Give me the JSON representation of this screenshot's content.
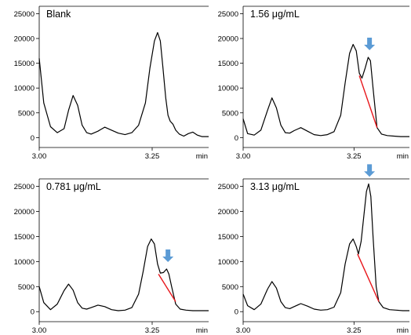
{
  "chart_data": [
    {
      "type": "line",
      "title": "Blank",
      "xlabel": "min",
      "xlim": [
        3.0,
        3.375
      ],
      "ylim": [
        -2000,
        26500
      ],
      "xticks": [
        "3.00",
        "3.25"
      ],
      "yticks": [
        "0",
        "5000",
        "10000",
        "15000",
        "20000",
        "25000"
      ],
      "series": [
        {
          "x": [
            3.0,
            3.01,
            3.025,
            3.04,
            3.055,
            3.065,
            3.075,
            3.085,
            3.095,
            3.105,
            3.115,
            3.13,
            3.145,
            3.16,
            3.175,
            3.19,
            3.205,
            3.22,
            3.235,
            3.245,
            3.255,
            3.262,
            3.268,
            3.274,
            3.28,
            3.285,
            3.29,
            3.296,
            3.302,
            3.31,
            3.32,
            3.33,
            3.34,
            3.35,
            3.36,
            3.375
          ],
          "y": [
            16000,
            7000,
            2200,
            1000,
            1800,
            5500,
            8500,
            6500,
            2500,
            1000,
            700,
            1300,
            2100,
            1500,
            900,
            600,
            1000,
            2500,
            7000,
            14000,
            19500,
            21200,
            19500,
            14000,
            8000,
            4500,
            3300,
            2700,
            1500,
            700,
            300,
            800,
            1100,
            500,
            200,
            200
          ]
        }
      ]
    },
    {
      "type": "line",
      "title": "1.56  μg/mL",
      "xlabel": "min",
      "xlim": [
        3.0,
        3.375
      ],
      "ylim": [
        -2000,
        26500
      ],
      "xticks": [
        "3.00",
        "3.25"
      ],
      "yticks": [
        "0",
        "5000",
        "10000",
        "15000",
        "20000",
        "25000"
      ],
      "baseline": {
        "x": [
          3.262,
          3.302
        ],
        "y": [
          12500,
          2000
        ]
      },
      "marker": {
        "x": 3.285,
        "label": "analyte peak"
      },
      "series": [
        {
          "x": [
            3.0,
            3.01,
            3.025,
            3.04,
            3.055,
            3.065,
            3.075,
            3.085,
            3.095,
            3.105,
            3.115,
            3.13,
            3.145,
            3.16,
            3.175,
            3.19,
            3.205,
            3.22,
            3.23,
            3.24,
            3.248,
            3.255,
            3.262,
            3.268,
            3.275,
            3.282,
            3.287,
            3.293,
            3.302,
            3.312,
            3.325,
            3.34,
            3.355,
            3.375
          ],
          "y": [
            3800,
            800,
            500,
            1500,
            5500,
            8000,
            6000,
            2500,
            1000,
            900,
            1400,
            2000,
            1300,
            600,
            400,
            600,
            1200,
            4500,
            11000,
            17000,
            18800,
            17500,
            13000,
            12000,
            14000,
            16200,
            15500,
            10000,
            2000,
            700,
            400,
            300,
            200,
            200
          ]
        }
      ]
    },
    {
      "type": "line",
      "title": "0.781  μg/mL",
      "xlabel": "min",
      "xlim": [
        3.0,
        3.375
      ],
      "ylim": [
        -2000,
        26500
      ],
      "xticks": [
        "3.00",
        "3.25"
      ],
      "yticks": [
        "0",
        "5000",
        "10000",
        "15000",
        "20000",
        "25000"
      ],
      "baseline": {
        "x": [
          3.264,
          3.302
        ],
        "y": [
          7500,
          2000
        ]
      },
      "marker": {
        "x": 3.285,
        "label": "analyte peak"
      },
      "series": [
        {
          "x": [
            3.0,
            3.01,
            3.025,
            3.04,
            3.055,
            3.065,
            3.075,
            3.085,
            3.095,
            3.105,
            3.115,
            3.13,
            3.145,
            3.16,
            3.175,
            3.19,
            3.205,
            3.22,
            3.23,
            3.24,
            3.248,
            3.255,
            3.262,
            3.268,
            3.275,
            3.282,
            3.287,
            3.293,
            3.302,
            3.312,
            3.325,
            3.34,
            3.355,
            3.375
          ],
          "y": [
            5000,
            1800,
            400,
            1500,
            4200,
            5500,
            4300,
            1800,
            700,
            500,
            800,
            1300,
            1000,
            400,
            200,
            300,
            800,
            3500,
            8000,
            13000,
            14500,
            13500,
            9500,
            7700,
            7800,
            8500,
            7500,
            5000,
            1500,
            500,
            300,
            200,
            200,
            200
          ]
        }
      ]
    },
    {
      "type": "line",
      "title": "3.13  μg/mL",
      "xlabel": "min",
      "xlim": [
        3.0,
        3.375
      ],
      "ylim": [
        -2000,
        26500
      ],
      "xticks": [
        "3.00",
        "3.25"
      ],
      "yticks": [
        "0",
        "5000",
        "10000",
        "15000",
        "20000",
        "25000"
      ],
      "baseline": {
        "x": [
          3.258,
          3.306
        ],
        "y": [
          11500,
          2000
        ]
      },
      "marker": {
        "x": 3.285,
        "label": "analyte peak"
      },
      "series": [
        {
          "x": [
            3.0,
            3.01,
            3.025,
            3.04,
            3.055,
            3.065,
            3.075,
            3.085,
            3.095,
            3.105,
            3.115,
            3.13,
            3.145,
            3.16,
            3.175,
            3.19,
            3.205,
            3.22,
            3.23,
            3.24,
            3.248,
            3.255,
            3.26,
            3.266,
            3.272,
            3.278,
            3.283,
            3.288,
            3.293,
            3.3,
            3.306,
            3.316,
            3.33,
            3.345,
            3.36,
            3.375
          ],
          "y": [
            3500,
            1200,
            400,
            1500,
            4500,
            6000,
            4700,
            2000,
            800,
            600,
            1000,
            1600,
            1100,
            500,
            300,
            400,
            900,
            3800,
            9500,
            13500,
            14500,
            13000,
            11500,
            14000,
            19000,
            24000,
            25500,
            23000,
            15000,
            5000,
            2000,
            800,
            400,
            300,
            200,
            200
          ]
        }
      ]
    }
  ]
}
